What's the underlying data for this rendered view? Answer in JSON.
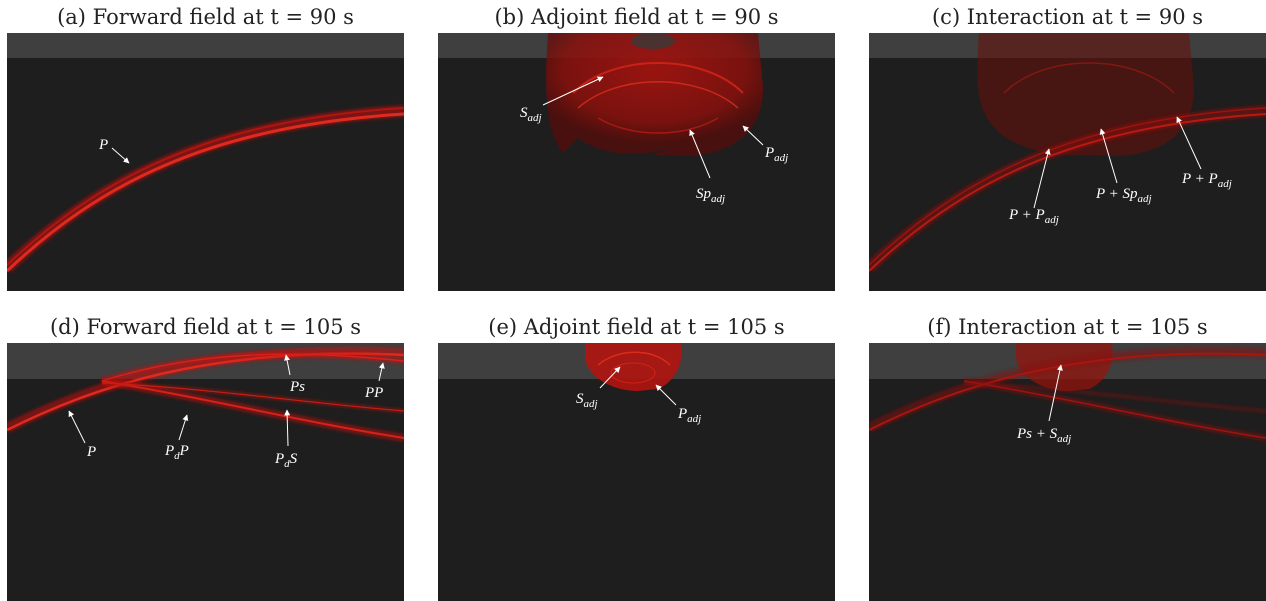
{
  "panels": [
    {
      "id": "a",
      "title": "(a) Forward field at t = 90 s"
    },
    {
      "id": "b",
      "title": "(b) Adjoint field at t = 90 s"
    },
    {
      "id": "c",
      "title": "(c) Interaction at t = 90 s"
    },
    {
      "id": "d",
      "title": "(d) Forward field at t = 105 s"
    },
    {
      "id": "e",
      "title": "(e) Adjoint field at t = 105 s"
    },
    {
      "id": "f",
      "title": "(f) Interaction at t = 105 s"
    }
  ],
  "labels": {
    "a": {
      "p": "P"
    },
    "b": {
      "s_adj_main": "S",
      "s_adj_sub": "adj",
      "p_adj_main": "P",
      "p_adj_sub": "adj",
      "sp_adj_main": "Sp",
      "sp_adj_sub": "adj"
    },
    "c": {
      "p_p_adj_main": "P + P",
      "p_p_adj_sub": "adj",
      "p_sp_adj_main": "P + Sp",
      "p_sp_adj_sub": "adj",
      "p_p_adj2_main": "P + P",
      "p_p_adj2_sub": "adj"
    },
    "d": {
      "p": "P",
      "pd_p_main1": "P",
      "pd_p_sub": "d",
      "pd_p_main2": "P",
      "ps": "Ps",
      "pd_s_main1": "P",
      "pd_s_sub": "d",
      "pd_s_main2": "S",
      "pp": "PP"
    },
    "e": {
      "s_adj_main": "S",
      "s_adj_sub": "adj",
      "p_adj_main": "P",
      "p_adj_sub": "adj"
    },
    "f": {
      "ps_s_adj_main": "Ps + S",
      "ps_s_adj_sub": "adj"
    }
  },
  "colors": {
    "background": "#1e1e1e",
    "surface_layer": "#3f3f3f",
    "wave_red": "#c8100c",
    "label": "#ffffff"
  }
}
